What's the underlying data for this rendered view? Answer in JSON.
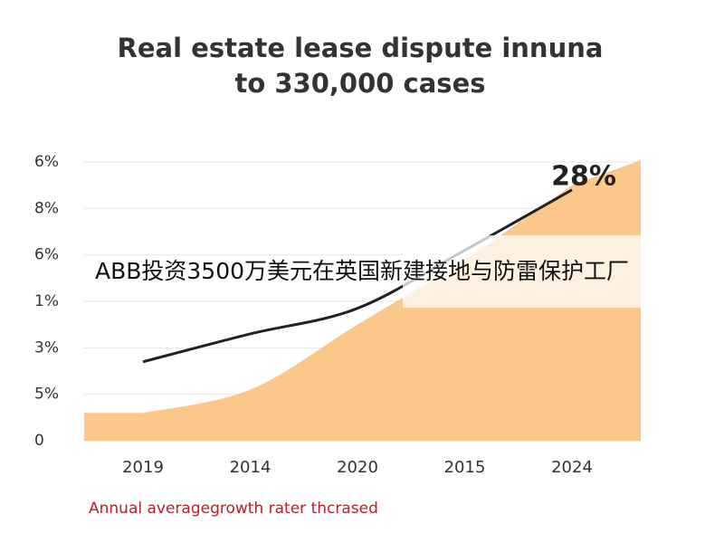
{
  "chart_data": {
    "type": "area_line",
    "title": [
      "Real estate lease dispute innuna",
      "to 330,000 cases"
    ],
    "y_axis_labels": [
      "6%",
      "8%",
      "6%",
      "1%",
      "3%",
      "5%",
      "0"
    ],
    "categories": [
      "2019",
      "2014",
      "2020",
      "2015",
      "2024"
    ],
    "series": [
      {
        "kind": "area",
        "color": "#fcc88a",
        "values": [
          0.6,
          1.1,
          2.5,
          3.9,
          5.5
        ]
      },
      {
        "kind": "line",
        "color": "#222222",
        "values": [
          1.7,
          2.3,
          2.85,
          4.1,
          5.4
        ]
      }
    ],
    "annotation": "28%",
    "footnote": "Annual averagegrowth rater thcrased",
    "overlay_text": "ABB投资3500万美元在英国新建接地与防雷保护工厂",
    "grid": true
  }
}
